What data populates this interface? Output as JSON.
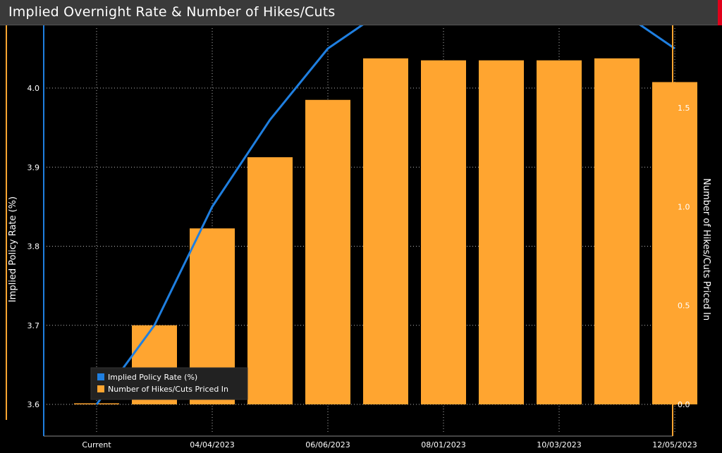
{
  "header": {
    "title": "Implied Overnight Rate & Number of Hikes/Cuts"
  },
  "colors": {
    "bar": "#ffa530",
    "line": "#1f7fe0",
    "grid": "#b9b9b9",
    "left_axis": "#1f7fe0",
    "right_axis": "#ffa530"
  },
  "chart_data": {
    "type": "bar",
    "categories": [
      "Current",
      "",
      "04/04/2023",
      "",
      "06/06/2023",
      "",
      "08/01/2023",
      "",
      "10/03/2023",
      "",
      "12/05/2023"
    ],
    "x_tick_labels": [
      "Current",
      "04/04/2023",
      "06/06/2023",
      "08/01/2023",
      "10/03/2023",
      "12/05/2023"
    ],
    "series": [
      {
        "name": "Implied Policy Rate (%)",
        "type": "line",
        "axis": "left",
        "values": [
          3.6,
          3.7,
          3.85,
          3.96,
          4.05,
          4.1,
          4.1,
          4.1,
          4.1,
          4.1,
          4.05
        ]
      },
      {
        "name": "Number of Hikes/Cuts Priced In",
        "type": "bar",
        "axis": "right",
        "values": [
          0.0,
          0.4,
          0.89,
          1.25,
          1.54,
          1.75,
          1.74,
          1.74,
          1.74,
          1.75,
          1.63
        ]
      }
    ],
    "ylabel_left": "Implied Policy Rate (%)",
    "ylabel_right": "Number of Hikes/Cuts Priced In",
    "ylim_left": [
      3.54,
      4.1
    ],
    "ylim_right": [
      -0.13,
      1.95
    ],
    "yticks_left": [
      "3.6",
      "3.7",
      "3.8",
      "3.9",
      "4.0"
    ],
    "yticks_right": [
      "0.0",
      "0.5",
      "1.0",
      "1.5"
    ],
    "grid": true,
    "legend_placement": "bottom-left"
  }
}
